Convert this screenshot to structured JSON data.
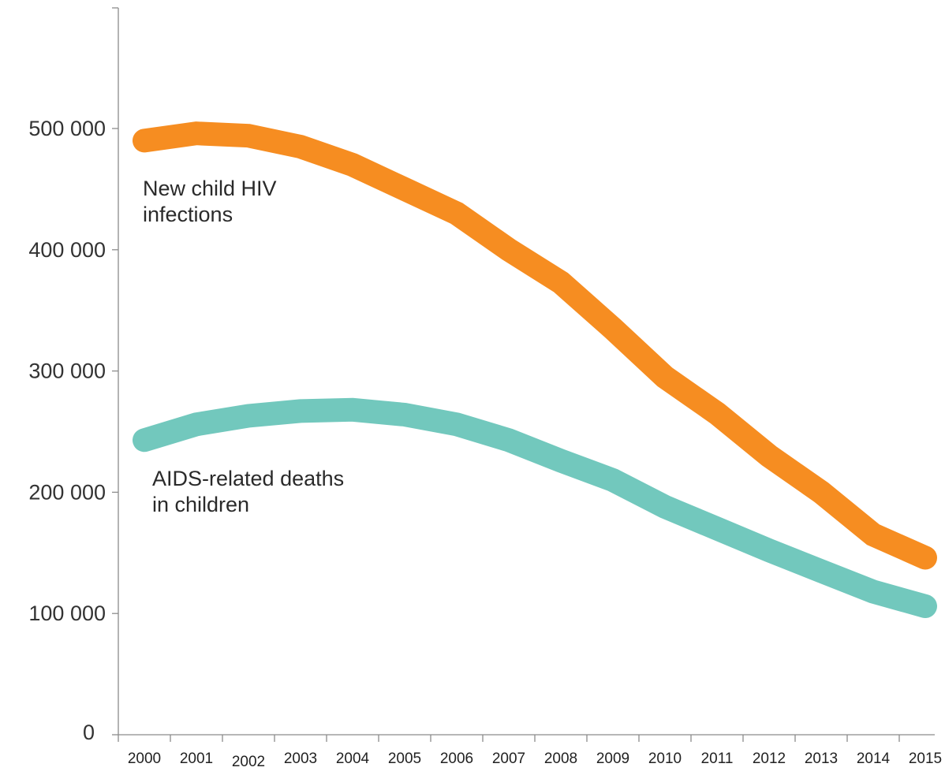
{
  "chart_data": {
    "type": "line",
    "title": "",
    "xlabel": "",
    "ylabel": "",
    "x": [
      "2000",
      "2001",
      "2002",
      "2003",
      "2004",
      "2005",
      "2006",
      "2007",
      "2008",
      "2009",
      "2010",
      "2011",
      "2012",
      "2013",
      "2014",
      "2015"
    ],
    "y_ticks": [
      0,
      100000,
      200000,
      300000,
      400000,
      500000
    ],
    "y_tick_labels": [
      "0",
      "100 000",
      "200 000",
      "300 000",
      "400 000",
      "500 000"
    ],
    "ylim": [
      0,
      590000
    ],
    "grid": false,
    "legend": "none (direct labels beside lines)",
    "series": [
      {
        "name": "New child HIV infections",
        "label_lines": [
          "New child HIV",
          "infections"
        ],
        "color": "#f68d21",
        "values": [
          490000,
          496000,
          494000,
          485000,
          470000,
          450000,
          430000,
          400000,
          373000,
          335000,
          295000,
          265000,
          230000,
          200000,
          165000,
          146000
        ]
      },
      {
        "name": "AIDS-related deaths in children",
        "label_lines": [
          "AIDS-related deaths",
          "in children"
        ],
        "color": "#72c8bd",
        "values": [
          243000,
          256000,
          263000,
          267000,
          268000,
          264000,
          256000,
          243000,
          226000,
          210000,
          188000,
          170000,
          152000,
          135000,
          118000,
          106000
        ]
      }
    ]
  }
}
